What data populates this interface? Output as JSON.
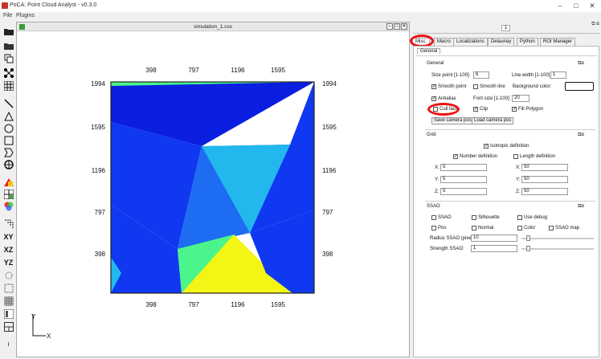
{
  "app": {
    "title": "PoCA: Point Cloud Analyst - v0.3.0"
  },
  "menu": [
    "File",
    "Plugins"
  ],
  "subwindow": {
    "title": "simulation_1.csv"
  },
  "plot": {
    "x_ticks": [
      "398",
      "797",
      "1196",
      "1595"
    ],
    "y_ticks": [
      "1994",
      "1595",
      "1196",
      "797",
      "398"
    ],
    "axis_x": "X",
    "axis_y": "Y",
    "colors": {
      "blue": "#1038f0",
      "mid": "#1e6cf2",
      "cyan": "#22b8ee",
      "green": "#4cf58c",
      "yellow": "#f3f614",
      "dark": "#0a1ee0"
    }
  },
  "toolbar": {
    "xy": "XY",
    "xz": "XZ",
    "yz": "YZ"
  },
  "panel": {
    "page": "1",
    "tabs": [
      "Misc.",
      "Macro",
      "Localizations",
      "Delaunay",
      "Python",
      "ROI Manager"
    ],
    "subtab": "General",
    "general": {
      "title": "General",
      "size_point_label": "Size point [1-100]:",
      "size_point": "6",
      "line_width_label": "Line width [1-100]:",
      "line_width": "1",
      "smooth_point": "Smooth point",
      "smooth_line": "Smooth line",
      "bg_color": "Background color:",
      "antialias": "Antialias",
      "font_size_label": "Font size [1-100]:",
      "font_size": "20",
      "cull_face": "Cull face",
      "clip": "Clip",
      "fill_polygon": "Fill Polygon",
      "save_camera": "Save camera pos",
      "load_camera": "Load camera pos"
    },
    "grid": {
      "title": "Grid",
      "isotropic": "Isotropic definition",
      "number_def": "Number definition",
      "length_def": "Length definition",
      "x_label": "X:",
      "y_label": "Y:",
      "z_label": "Z:",
      "nx": "5",
      "ny": "5",
      "nz": "5",
      "lx": "50",
      "ly": "50",
      "lz": "50"
    },
    "ssao": {
      "title": "SSAO",
      "ssao": "SSAO",
      "silhouette": "Silhouette",
      "use_debug": "Use debug",
      "pos": "Pos",
      "normal": "Normal",
      "color": "Color",
      "ssao_map": "SSAO map",
      "radius_label": "Radius SSAO (pixel):",
      "radius": "10",
      "strength_label": "Strength SSAO:",
      "strength": "1"
    }
  }
}
